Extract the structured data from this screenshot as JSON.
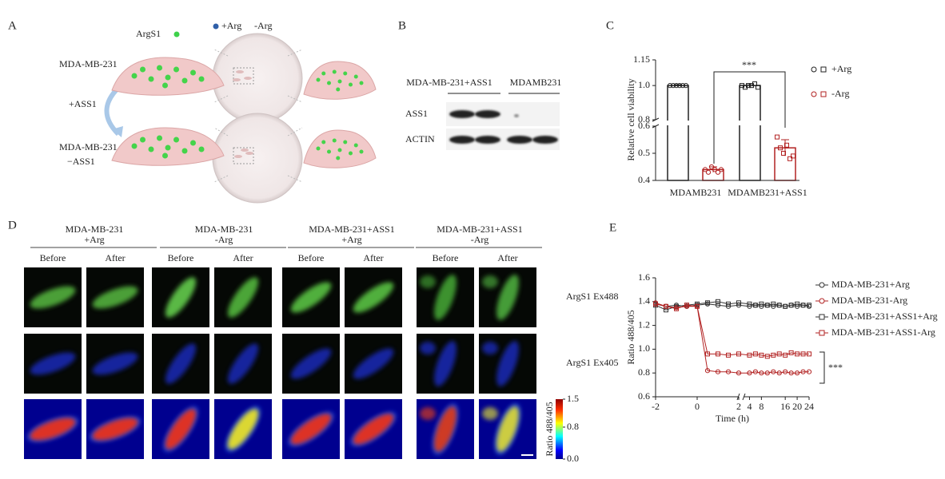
{
  "panel_a": {
    "label": "A",
    "sensor": "ArgS1",
    "plus_arg": "+Arg",
    "minus_arg": "-Arg",
    "cell_top": "MDA-MB-231",
    "transfection": "+ASS1",
    "cell_bottom_line1": "MDA-MB-231",
    "cell_bottom_line2": "−ASS1"
  },
  "panel_b": {
    "label": "B",
    "groups": [
      "MDA-MB-231+ASS1",
      "MDAMB231"
    ],
    "rows": [
      "ASS1",
      "ACTIN"
    ]
  },
  "panel_c": {
    "label": "C"
  },
  "panel_d": {
    "label": "D",
    "groups": [
      {
        "line1": "MDA-MB-231",
        "line2": "+Arg"
      },
      {
        "line1": "MDA-MB-231",
        "line2": "-Arg"
      },
      {
        "line1": "MDA-MB-231+ASS1",
        "line2": "+Arg"
      },
      {
        "line1": "MDA-MB-231+ASS1",
        "line2": "-Arg"
      }
    ],
    "before": "Before",
    "after": "After",
    "rows": [
      "ArgS1 Ex488",
      "ArgS1 Ex405"
    ],
    "colorbar": {
      "label": "Ratio 488/405",
      "clim": [
        0,
        1.5
      ],
      "ticks": [
        1.5,
        0.8,
        {
          "value": 0,
          "label": "0.0"
        }
      ]
    }
  },
  "panel_e": {
    "label": "E"
  },
  "chart_data": [
    {
      "type": "bar",
      "ylabel": "Relative cell viability",
      "categories": [
        "MDAMB231",
        "MDAMB231+ASS1"
      ],
      "series": [
        {
          "name": "+Arg",
          "color": "#222222",
          "values": [
            1.0,
            1.0
          ],
          "errors": [
            0.005,
            0.01
          ],
          "points": [
            [
              1.0,
              1.0,
              1.0,
              1.0,
              1.0,
              1.0
            ],
            [
              1.0,
              0.99,
              1.0,
              1.0,
              1.01,
              0.99
            ]
          ]
        },
        {
          "name": "-Arg",
          "color": "#b22222",
          "values": [
            0.44,
            0.52
          ],
          "errors": [
            0.01,
            0.03
          ],
          "points": [
            [
              0.44,
              0.43,
              0.45,
              0.44,
              0.43,
              0.44
            ],
            [
              0.56,
              0.52,
              0.5,
              0.53,
              0.48,
              0.49
            ]
          ]
        }
      ],
      "ylim": [
        0.4,
        1.15
      ],
      "ybreak": [
        0.6,
        0.8
      ],
      "yticks": [
        0.4,
        0.5,
        0.6,
        0.8,
        {
          "value": 1,
          "label": "1.0"
        },
        1.15
      ],
      "annotation": "***",
      "legend": "right"
    },
    {
      "type": "line",
      "xlabel": "Time (h)",
      "ylabel": "Ratio 488/405",
      "x": [
        -2,
        -1.5,
        -1,
        -0.5,
        0,
        0.5,
        1,
        1.5,
        2,
        4,
        6,
        8,
        10,
        12,
        14,
        16,
        18,
        20,
        22,
        24
      ],
      "series": [
        {
          "name": "MDA-MB-231+Arg",
          "color": "#333333",
          "marker": "circle",
          "values": [
            1.38,
            1.36,
            1.37,
            1.36,
            1.37,
            1.38,
            1.37,
            1.36,
            1.37,
            1.36,
            1.37,
            1.36,
            1.37,
            1.36,
            1.37,
            1.36,
            1.37,
            1.36,
            1.37,
            1.36
          ]
        },
        {
          "name": "MDA-MB-231-Arg",
          "color": "#b22222",
          "marker": "circle",
          "values": [
            1.39,
            1.36,
            1.35,
            1.36,
            1.36,
            0.82,
            0.81,
            0.81,
            0.8,
            0.8,
            0.81,
            0.8,
            0.8,
            0.81,
            0.8,
            0.81,
            0.8,
            0.8,
            0.81,
            0.81
          ]
        },
        {
          "name": "MDA-MB-231+ASS1+Arg",
          "color": "#333333",
          "marker": "square",
          "values": [
            1.37,
            1.33,
            1.36,
            1.37,
            1.38,
            1.39,
            1.4,
            1.38,
            1.39,
            1.38,
            1.37,
            1.38,
            1.37,
            1.38,
            1.37,
            1.36,
            1.37,
            1.38,
            1.37,
            1.37
          ]
        },
        {
          "name": "MDA-MB-231+ASS1-Arg",
          "color": "#b22222",
          "marker": "square",
          "values": [
            1.38,
            1.36,
            1.34,
            1.37,
            1.36,
            0.96,
            0.96,
            0.95,
            0.96,
            0.95,
            0.96,
            0.95,
            0.94,
            0.95,
            0.96,
            0.95,
            0.97,
            0.96,
            0.96,
            0.96
          ]
        }
      ],
      "xlim": [
        -2,
        24
      ],
      "xbreak": 2,
      "xticks": [
        -2,
        0,
        2,
        4,
        8,
        16,
        20,
        24
      ],
      "ylim": [
        0.6,
        1.6
      ],
      "yticks": [
        0.6,
        0.8,
        {
          "value": 1,
          "label": "1.0"
        },
        1.2,
        1.4,
        1.6
      ],
      "annotation": "***",
      "legend": "right"
    }
  ]
}
